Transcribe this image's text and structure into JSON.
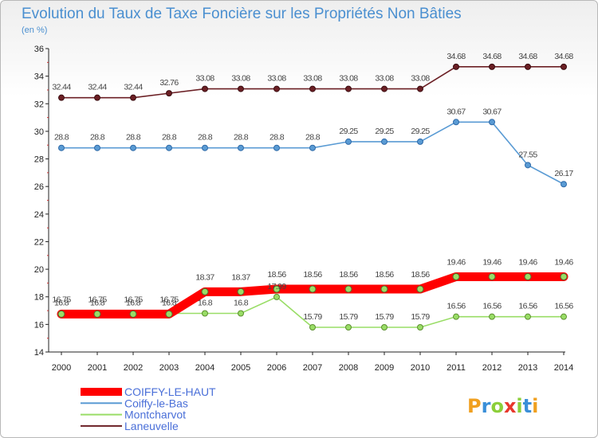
{
  "chart_data": {
    "type": "line",
    "title": "Evolution du Taux de Taxe Foncière sur les Propriétés Non Bâties",
    "subtitle": "(en %)",
    "xlabel": "",
    "ylabel": "(en %)",
    "x": [
      "2000",
      "2001",
      "2002",
      "2003",
      "2004",
      "2005",
      "2006",
      "2007",
      "2008",
      "2009",
      "2010",
      "2011",
      "2012",
      "2013",
      "2014"
    ],
    "yticks": [
      "14",
      "16",
      "18",
      "20",
      "22",
      "24",
      "26",
      "28",
      "30",
      "32",
      "34",
      "36"
    ],
    "ylim": [
      14,
      36
    ],
    "grid": false,
    "legend": "bottom-left",
    "series": [
      {
        "name": "Laneuvelle",
        "color": "#6b1f24",
        "values": [
          32.44,
          32.44,
          32.44,
          32.76,
          33.08,
          33.08,
          33.08,
          33.08,
          33.08,
          33.08,
          33.08,
          34.68,
          34.68,
          34.68,
          34.68
        ],
        "labels": [
          "32.44",
          "32.44",
          "32.44",
          "32.76",
          "33.08",
          "33.08",
          "33.08",
          "33.08",
          "33.08",
          "33.08",
          "33.08",
          "34.68",
          "34.68",
          "34.68",
          "34.68"
        ]
      },
      {
        "name": "Coiffy-le-Bas",
        "color": "#5a9bd4",
        "values": [
          28.8,
          28.8,
          28.8,
          28.8,
          28.8,
          28.8,
          28.8,
          28.8,
          29.25,
          29.25,
          29.25,
          30.67,
          30.67,
          27.55,
          26.17
        ],
        "labels": [
          "28.8",
          "28.8",
          "28.8",
          "28.8",
          "28.8",
          "28.8",
          "28.8",
          "28.8",
          "29.25",
          "29.25",
          "29.25",
          "30.67",
          "30.67",
          "27.55",
          "26.17"
        ]
      },
      {
        "name": "Montcharvot",
        "color": "#99dd66",
        "values": [
          16.8,
          16.8,
          16.8,
          16.8,
          16.8,
          16.8,
          17.99,
          15.79,
          15.79,
          15.79,
          15.79,
          16.56,
          16.56,
          16.56,
          16.56
        ],
        "labels": [
          "16.8",
          "16.8",
          "16.8",
          "16.8",
          "16.8",
          "16.8",
          "17.99",
          "15.79",
          "15.79",
          "15.79",
          "15.79",
          "16.56",
          "16.56",
          "16.56",
          "16.56"
        ]
      },
      {
        "name": "COIFFY-LE-HAUT",
        "color": "#ff0000",
        "values": [
          16.75,
          16.75,
          16.75,
          16.75,
          18.37,
          18.37,
          18.56,
          18.56,
          18.56,
          18.56,
          18.56,
          19.46,
          19.46,
          19.46,
          19.46
        ],
        "labels": [
          "16.75",
          "16.75",
          "16.75",
          "16.75",
          "18.37",
          "18.37",
          "18.56",
          "18.56",
          "18.56",
          "18.56",
          "18.56",
          "19.46",
          "19.46",
          "19.46",
          "19.46"
        ]
      }
    ],
    "legend_order": [
      "COIFFY-LE-HAUT",
      "Coiffy-le-Bas",
      "Montcharvot",
      "Laneuvelle"
    ]
  },
  "logo": {
    "text": "Proxiti"
  }
}
